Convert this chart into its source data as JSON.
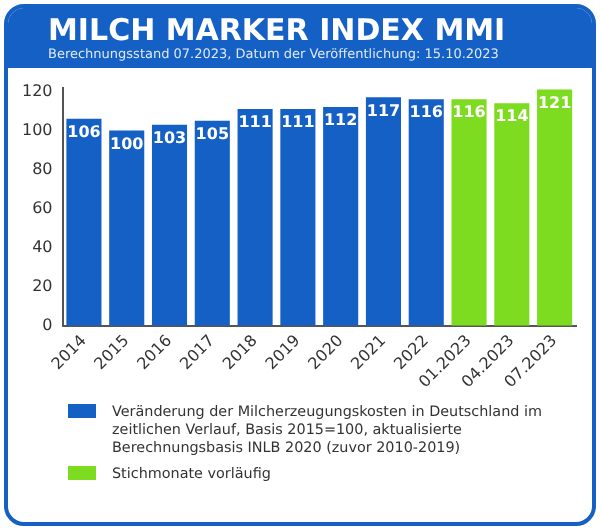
{
  "chart_data": {
    "type": "bar",
    "title": "MILCH MARKER INDEX MMI",
    "subtitle": "Berechnungsstand 07.2023, Datum der Veröffentlichung: 15.10.2023",
    "categories": [
      "2014",
      "2015",
      "2016",
      "2017",
      "2018",
      "2019",
      "2020",
      "2021",
      "2022",
      "01.2023",
      "04.2023",
      "07.2023"
    ],
    "series": [
      {
        "name": "Veränderung der Milcherzeugungskosten in Deutschland im zeitlichen Verlauf, Basis 2015=100, aktualisierte Berechnungsbasis INLB 2020 (zuvor 2010-2019)",
        "color": "#1560c4",
        "values": [
          106,
          100,
          103,
          105,
          111,
          111,
          112,
          117,
          116,
          null,
          null,
          null
        ]
      },
      {
        "name": "Stichmonate vorläufig",
        "color": "#7ddc1f",
        "values": [
          null,
          null,
          null,
          null,
          null,
          null,
          null,
          null,
          null,
          116,
          114,
          121
        ]
      }
    ],
    "ylim": [
      0,
      122
    ],
    "yticks": [
      0,
      20,
      40,
      60,
      80,
      100,
      120
    ],
    "data_labels": true,
    "legend": "bottom"
  }
}
